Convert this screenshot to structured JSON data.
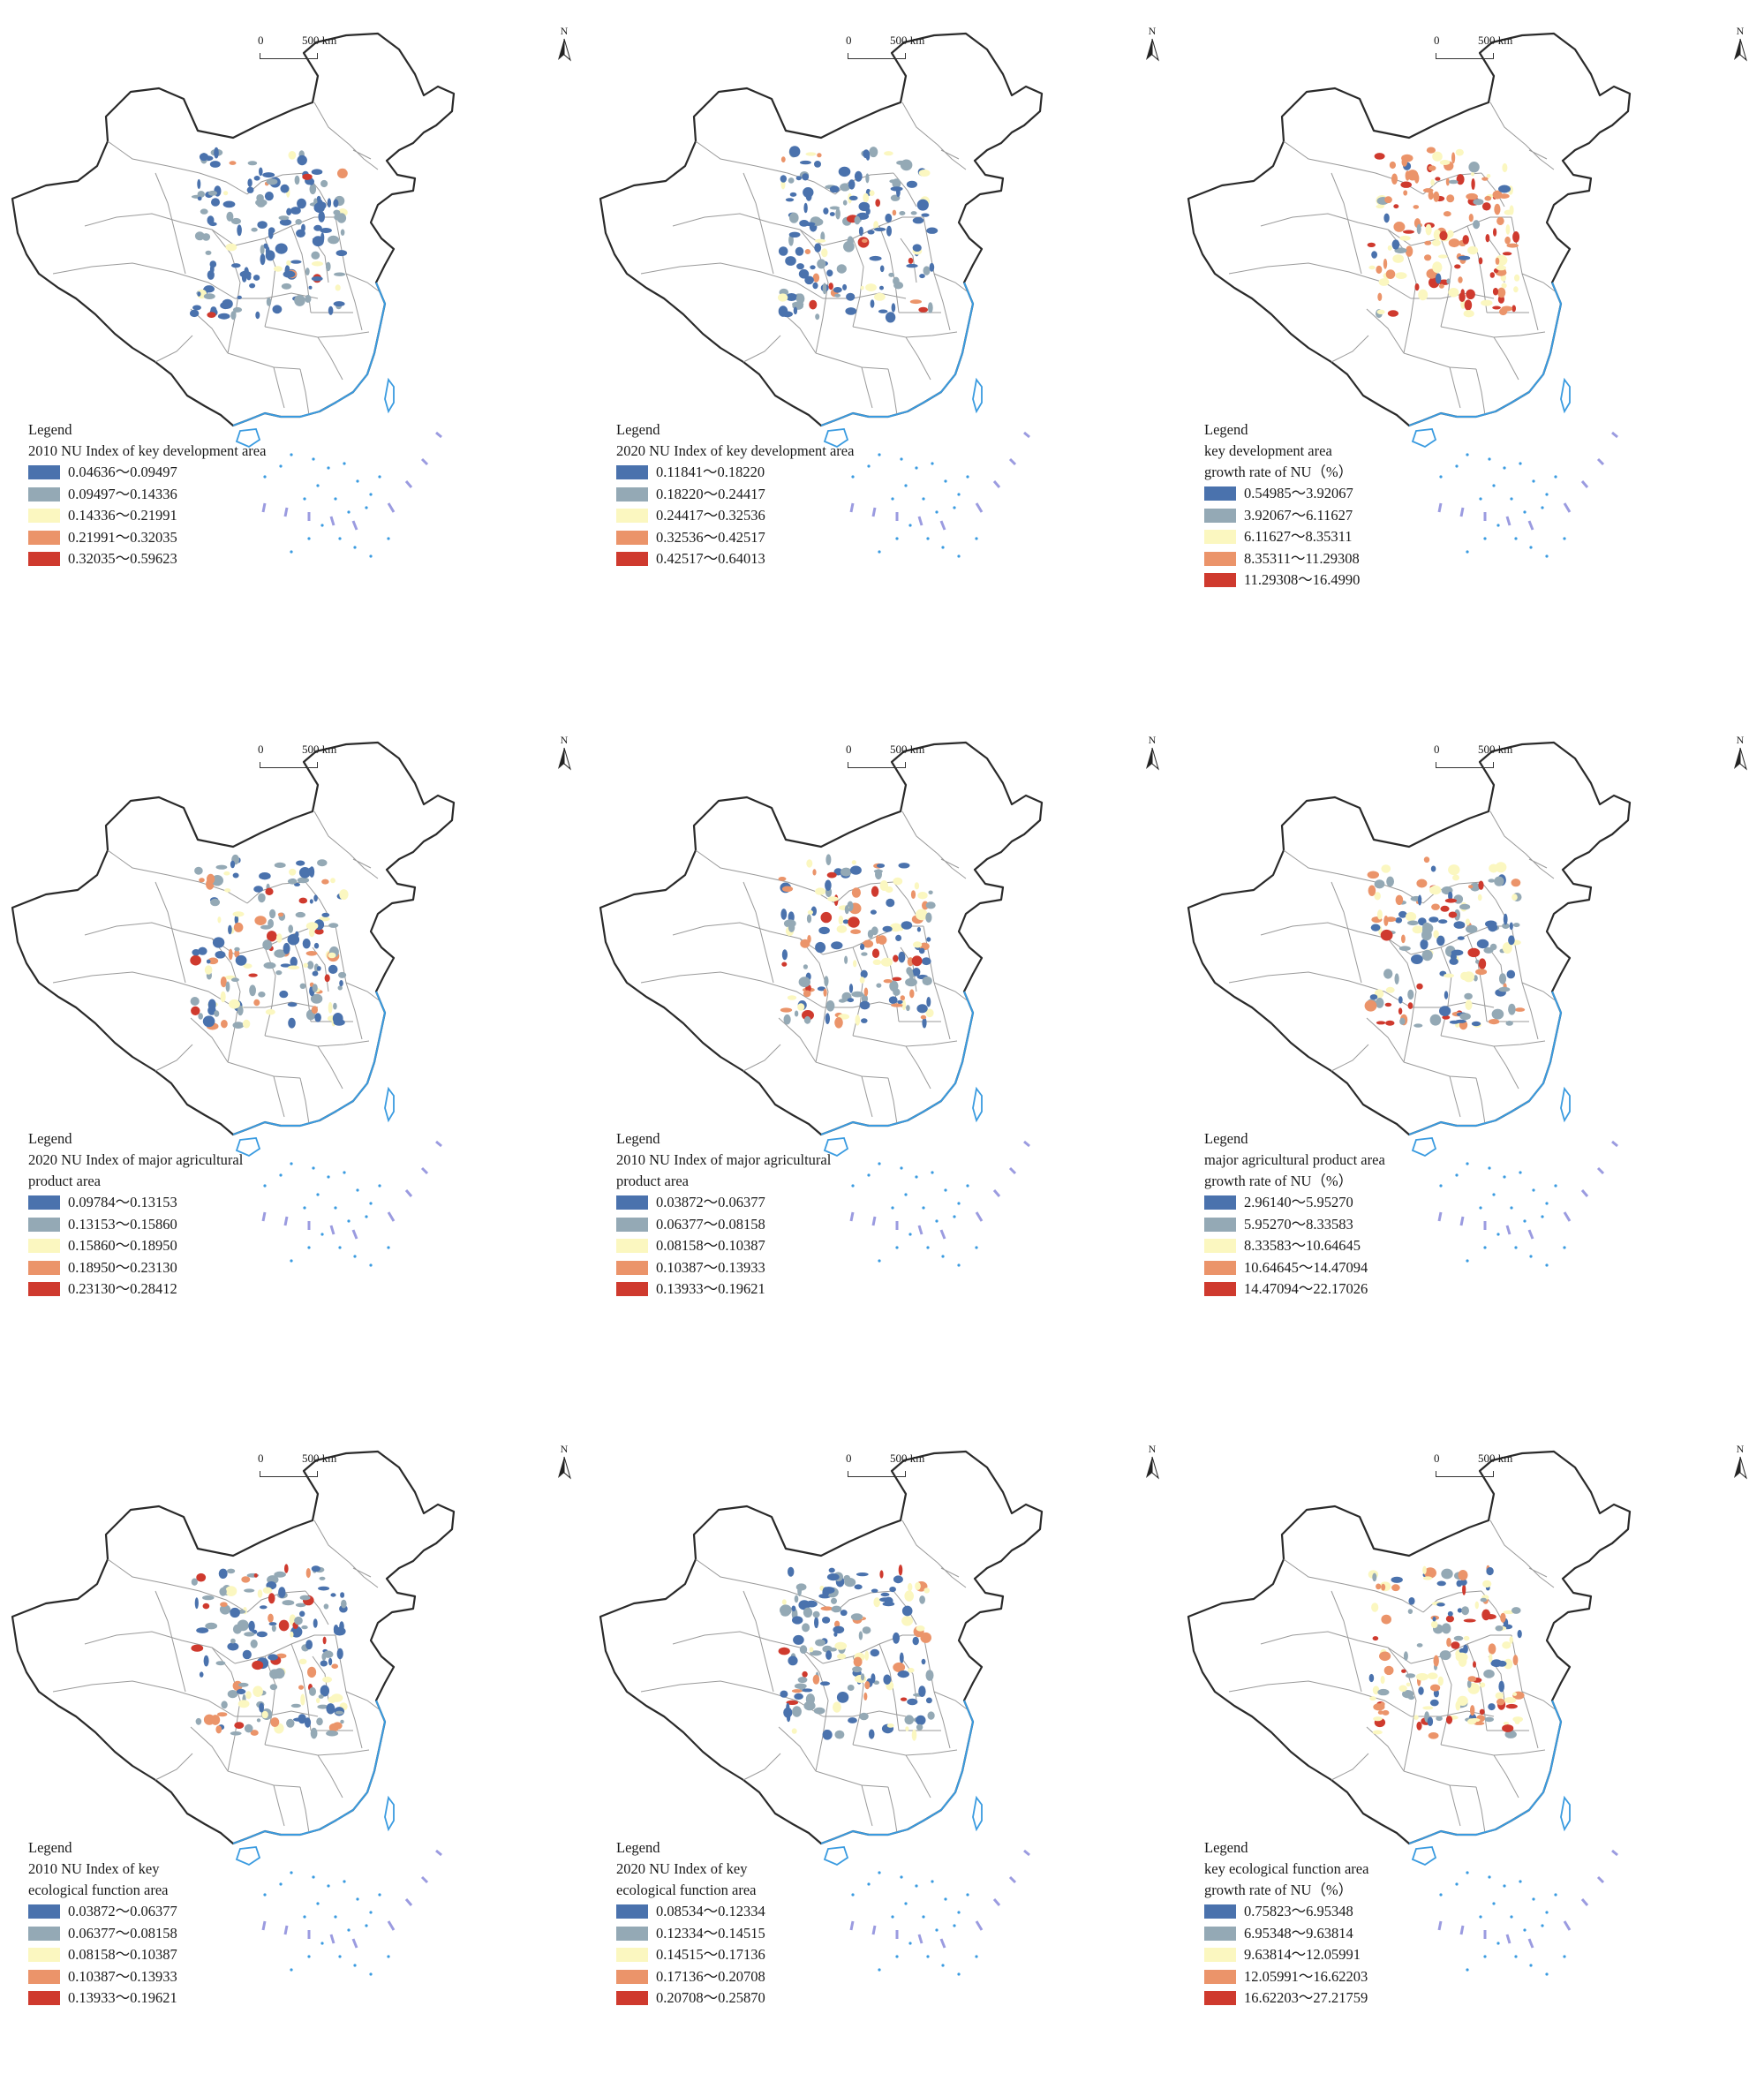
{
  "scale_bar": {
    "zero": "0",
    "distance": "500 km"
  },
  "north_label": "N",
  "legend_heading": "Legend",
  "colors": {
    "class1": "#4a72ad",
    "class2": "#94a9b5",
    "class3": "#fbf7c0",
    "class4": "#eb946a",
    "class5": "#cf3a2e",
    "boundary": "#9a9a9a",
    "border": "#2a2a2a",
    "coast": "#3a9be0"
  },
  "panels": [
    {
      "legend_title": "2010 NU Index of key development area",
      "classes": [
        "0.04636～0.09497",
        "0.09497～0.14336",
        "0.14336～0.21991",
        "0.21991～0.32035",
        "0.32035～0.59623"
      ]
    },
    {
      "legend_title": "2020 NU Index of key development area",
      "classes": [
        "0.11841～0.18220",
        "0.18220～0.24417",
        "0.24417～0.32536",
        "0.32536～0.42517",
        "0.42517～0.64013"
      ]
    },
    {
      "legend_title": "key development area\ngrowth rate of NU（%）",
      "classes": [
        "0.54985～3.92067",
        "3.92067～6.11627",
        "6.11627～8.35311",
        "8.35311～11.29308",
        "11.29308～16.4990"
      ]
    },
    {
      "legend_title": "2020 NU Index of major agricultural\nproduct area",
      "classes": [
        "0.09784～0.13153",
        "0.13153～0.15860",
        "0.15860～0.18950",
        "0.18950～0.23130",
        "0.23130～0.28412"
      ]
    },
    {
      "legend_title": "2010 NU Index of major agricultural\nproduct area",
      "classes": [
        "0.03872～0.06377",
        "0.06377～0.08158",
        "0.08158～0.10387",
        "0.10387～0.13933",
        "0.13933～0.19621"
      ]
    },
    {
      "legend_title": "major agricultural product area\ngrowth rate of NU（%）",
      "classes": [
        "2.96140～5.95270",
        "5.95270～8.33583",
        "8.33583～10.64645",
        "10.64645～14.47094",
        "14.47094～22.17026"
      ]
    },
    {
      "legend_title": "2010 NU Index of key\necological function area",
      "classes": [
        "0.03872～0.06377",
        "0.06377～0.08158",
        "0.08158～0.10387",
        "0.10387～0.13933",
        "0.13933～0.19621"
      ]
    },
    {
      "legend_title": "2020 NU Index of key\necological function area",
      "classes": [
        "0.08534～0.12334",
        "0.12334～0.14515",
        "0.14515～0.17136",
        "0.17136～0.20708",
        "0.20708～0.25870"
      ]
    },
    {
      "legend_title": "key ecological function area\ngrowth rate of NU（%）",
      "classes": [
        "0.75823～6.95348",
        "6.95348～9.63814",
        "9.63814～12.05991",
        "12.05991～16.62203",
        "16.62203～27.21759"
      ]
    }
  ]
}
